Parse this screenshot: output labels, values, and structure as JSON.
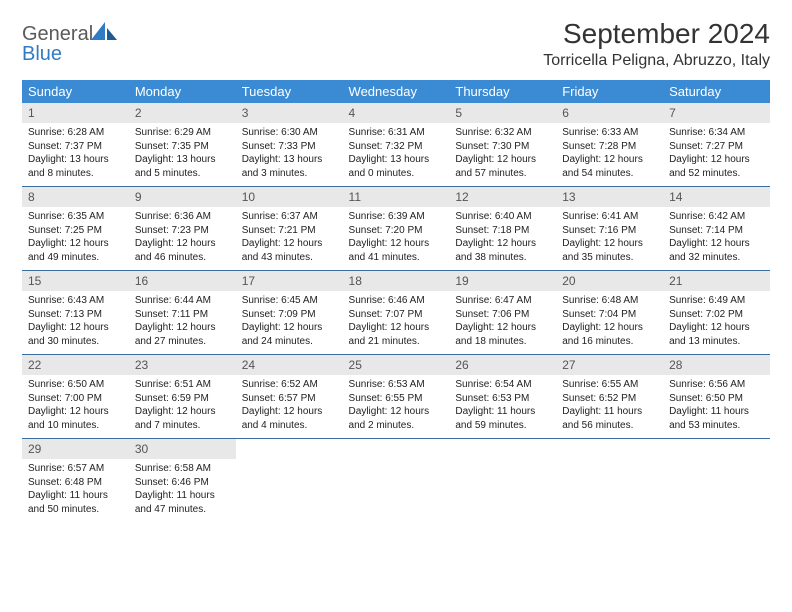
{
  "brand": {
    "general": "General",
    "blue": "Blue"
  },
  "title": "September 2024",
  "location": "Torricella Peligna, Abruzzo, Italy",
  "colors": {
    "header_bg": "#3b8bd4",
    "header_text": "#ffffff",
    "daynum_bg": "#e8e8e8",
    "row_border": "#3b6fa0",
    "brand_gray": "#5a5a5a",
    "brand_blue": "#2f7cc4"
  },
  "dayHeaders": [
    "Sunday",
    "Monday",
    "Tuesday",
    "Wednesday",
    "Thursday",
    "Friday",
    "Saturday"
  ],
  "weeks": [
    [
      {
        "n": "1",
        "sr": "6:28 AM",
        "ss": "7:37 PM",
        "dl": "13 hours and 8 minutes."
      },
      {
        "n": "2",
        "sr": "6:29 AM",
        "ss": "7:35 PM",
        "dl": "13 hours and 5 minutes."
      },
      {
        "n": "3",
        "sr": "6:30 AM",
        "ss": "7:33 PM",
        "dl": "13 hours and 3 minutes."
      },
      {
        "n": "4",
        "sr": "6:31 AM",
        "ss": "7:32 PM",
        "dl": "13 hours and 0 minutes."
      },
      {
        "n": "5",
        "sr": "6:32 AM",
        "ss": "7:30 PM",
        "dl": "12 hours and 57 minutes."
      },
      {
        "n": "6",
        "sr": "6:33 AM",
        "ss": "7:28 PM",
        "dl": "12 hours and 54 minutes."
      },
      {
        "n": "7",
        "sr": "6:34 AM",
        "ss": "7:27 PM",
        "dl": "12 hours and 52 minutes."
      }
    ],
    [
      {
        "n": "8",
        "sr": "6:35 AM",
        "ss": "7:25 PM",
        "dl": "12 hours and 49 minutes."
      },
      {
        "n": "9",
        "sr": "6:36 AM",
        "ss": "7:23 PM",
        "dl": "12 hours and 46 minutes."
      },
      {
        "n": "10",
        "sr": "6:37 AM",
        "ss": "7:21 PM",
        "dl": "12 hours and 43 minutes."
      },
      {
        "n": "11",
        "sr": "6:39 AM",
        "ss": "7:20 PM",
        "dl": "12 hours and 41 minutes."
      },
      {
        "n": "12",
        "sr": "6:40 AM",
        "ss": "7:18 PM",
        "dl": "12 hours and 38 minutes."
      },
      {
        "n": "13",
        "sr": "6:41 AM",
        "ss": "7:16 PM",
        "dl": "12 hours and 35 minutes."
      },
      {
        "n": "14",
        "sr": "6:42 AM",
        "ss": "7:14 PM",
        "dl": "12 hours and 32 minutes."
      }
    ],
    [
      {
        "n": "15",
        "sr": "6:43 AM",
        "ss": "7:13 PM",
        "dl": "12 hours and 30 minutes."
      },
      {
        "n": "16",
        "sr": "6:44 AM",
        "ss": "7:11 PM",
        "dl": "12 hours and 27 minutes."
      },
      {
        "n": "17",
        "sr": "6:45 AM",
        "ss": "7:09 PM",
        "dl": "12 hours and 24 minutes."
      },
      {
        "n": "18",
        "sr": "6:46 AM",
        "ss": "7:07 PM",
        "dl": "12 hours and 21 minutes."
      },
      {
        "n": "19",
        "sr": "6:47 AM",
        "ss": "7:06 PM",
        "dl": "12 hours and 18 minutes."
      },
      {
        "n": "20",
        "sr": "6:48 AM",
        "ss": "7:04 PM",
        "dl": "12 hours and 16 minutes."
      },
      {
        "n": "21",
        "sr": "6:49 AM",
        "ss": "7:02 PM",
        "dl": "12 hours and 13 minutes."
      }
    ],
    [
      {
        "n": "22",
        "sr": "6:50 AM",
        "ss": "7:00 PM",
        "dl": "12 hours and 10 minutes."
      },
      {
        "n": "23",
        "sr": "6:51 AM",
        "ss": "6:59 PM",
        "dl": "12 hours and 7 minutes."
      },
      {
        "n": "24",
        "sr": "6:52 AM",
        "ss": "6:57 PM",
        "dl": "12 hours and 4 minutes."
      },
      {
        "n": "25",
        "sr": "6:53 AM",
        "ss": "6:55 PM",
        "dl": "12 hours and 2 minutes."
      },
      {
        "n": "26",
        "sr": "6:54 AM",
        "ss": "6:53 PM",
        "dl": "11 hours and 59 minutes."
      },
      {
        "n": "27",
        "sr": "6:55 AM",
        "ss": "6:52 PM",
        "dl": "11 hours and 56 minutes."
      },
      {
        "n": "28",
        "sr": "6:56 AM",
        "ss": "6:50 PM",
        "dl": "11 hours and 53 minutes."
      }
    ],
    [
      {
        "n": "29",
        "sr": "6:57 AM",
        "ss": "6:48 PM",
        "dl": "11 hours and 50 minutes."
      },
      {
        "n": "30",
        "sr": "6:58 AM",
        "ss": "6:46 PM",
        "dl": "11 hours and 47 minutes."
      },
      null,
      null,
      null,
      null,
      null
    ]
  ],
  "labels": {
    "sunrise": "Sunrise:",
    "sunset": "Sunset:",
    "daylight": "Daylight:"
  }
}
